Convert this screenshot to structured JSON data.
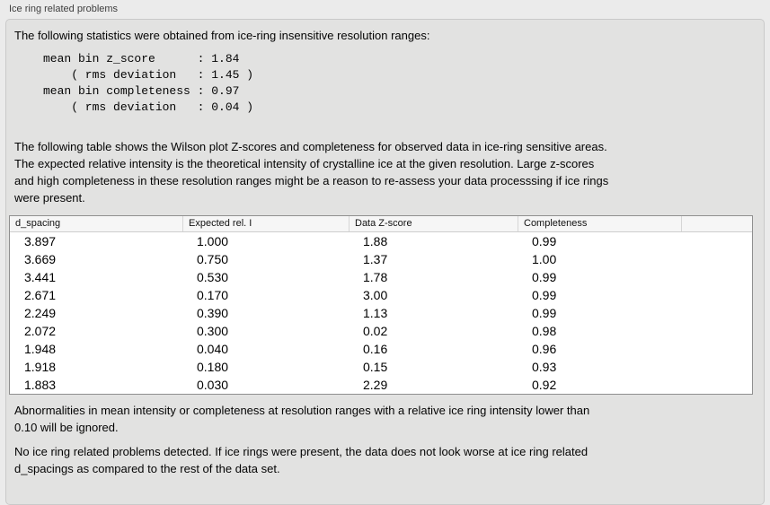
{
  "panel_title": "Ice ring related problems",
  "intro": "The following statistics were obtained from ice-ring insensitive resolution ranges:",
  "stats_lines": [
    "mean bin z_score      : 1.84",
    "    ( rms deviation   : 1.45 )",
    "mean bin completeness : 0.97",
    "    ( rms deviation   : 0.04 )"
  ],
  "description_lines": [
    "The following table shows the Wilson plot Z-scores and completeness for observed data in ice-ring sensitive areas.",
    "The expected relative intensity is the theoretical intensity of crystalline ice at the given resolution. Large z-scores",
    "and high completeness in these resolution ranges might be a reason to re-assess your data processsing if ice rings",
    "were present."
  ],
  "table": {
    "columns": [
      "d_spacing",
      "Expected rel. I",
      "Data Z-score",
      "Completeness",
      ""
    ],
    "rows": [
      [
        "3.897",
        "1.000",
        "1.88",
        "0.99"
      ],
      [
        "3.669",
        "0.750",
        "1.37",
        "1.00"
      ],
      [
        "3.441",
        "0.530",
        "1.78",
        "0.99"
      ],
      [
        "2.671",
        "0.170",
        "3.00",
        "0.99"
      ],
      [
        "2.249",
        "0.390",
        "1.13",
        "0.99"
      ],
      [
        "2.072",
        "0.300",
        "0.02",
        "0.98"
      ],
      [
        "1.948",
        "0.040",
        "0.16",
        "0.96"
      ],
      [
        "1.918",
        "0.180",
        "0.15",
        "0.93"
      ],
      [
        "1.883",
        "0.030",
        "2.29",
        "0.92"
      ]
    ]
  },
  "note_lines": [
    "Abnormalities in mean intensity or completeness at resolution ranges with a relative ice ring intensity lower than",
    "0.10 will be ignored."
  ],
  "conclusion_lines": [
    "No ice ring related problems detected. If ice rings were present, the data does not look worse at ice ring related",
    "d_spacings as compared to the rest of the data set."
  ],
  "colors": {
    "outer_background": "#ebebeb",
    "box_background": "#e2e2e1",
    "box_border": "#c9c9c9",
    "table_background": "#ffffff",
    "table_border": "#8f8f8f",
    "table_header_background": "#f6f6f6",
    "text": "#040404"
  }
}
